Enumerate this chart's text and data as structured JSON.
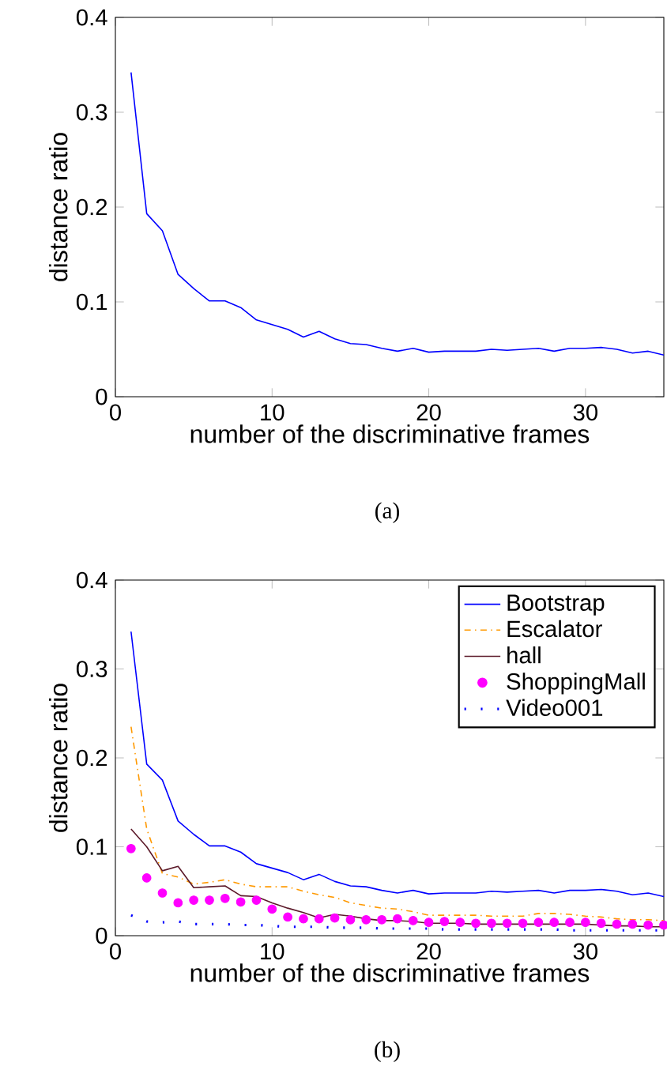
{
  "chart_data": [
    {
      "type": "line",
      "xlabel": "number of the discriminative frames",
      "ylabel": "distance ratio",
      "annotations": [
        "(a)"
      ],
      "x": [
        1,
        2,
        3,
        4,
        5,
        6,
        7,
        8,
        9,
        10,
        11,
        12,
        13,
        14,
        15,
        16,
        17,
        18,
        19,
        20,
        21,
        22,
        23,
        24,
        25,
        26,
        27,
        28,
        29,
        30,
        31,
        32,
        33,
        34,
        35
      ],
      "xlim": [
        0,
        35
      ],
      "ylim": [
        0,
        0.4
      ],
      "xticks": [
        0,
        10,
        20,
        30
      ],
      "yticks": [
        0,
        0.1,
        0.2,
        0.3,
        0.4
      ],
      "series": [
        {
          "color": "#0000ff",
          "line_style": "solid",
          "values": [
            0.342,
            0.193,
            0.175,
            0.129,
            0.114,
            0.101,
            0.101,
            0.094,
            0.081,
            0.076,
            0.071,
            0.063,
            0.069,
            0.061,
            0.056,
            0.055,
            0.051,
            0.048,
            0.051,
            0.047,
            0.048,
            0.048,
            0.048,
            0.05,
            0.049,
            0.05,
            0.051,
            0.048,
            0.051,
            0.051,
            0.052,
            0.05,
            0.046,
            0.048,
            0.044
          ]
        }
      ]
    },
    {
      "type": "line",
      "xlabel": "number of the discriminative frames",
      "ylabel": "distance ratio",
      "annotations": [
        "(b)"
      ],
      "legend": "top right",
      "x": [
        1,
        2,
        3,
        4,
        5,
        6,
        7,
        8,
        9,
        10,
        11,
        12,
        13,
        14,
        15,
        16,
        17,
        18,
        19,
        20,
        21,
        22,
        23,
        24,
        25,
        26,
        27,
        28,
        29,
        30,
        31,
        32,
        33,
        34,
        35
      ],
      "xlim": [
        0,
        35
      ],
      "ylim": [
        0,
        0.4
      ],
      "xticks": [
        0,
        10,
        20,
        30
      ],
      "yticks": [
        0,
        0.1,
        0.2,
        0.3,
        0.4
      ],
      "series": [
        {
          "name": "Bootstrap",
          "color": "#0000ff",
          "line_style": "solid",
          "values": [
            0.342,
            0.193,
            0.175,
            0.129,
            0.114,
            0.101,
            0.101,
            0.094,
            0.081,
            0.076,
            0.071,
            0.063,
            0.069,
            0.061,
            0.056,
            0.055,
            0.051,
            0.048,
            0.051,
            0.047,
            0.048,
            0.048,
            0.048,
            0.05,
            0.049,
            0.05,
            0.051,
            0.048,
            0.051,
            0.051,
            0.052,
            0.05,
            0.046,
            0.048,
            0.044
          ]
        },
        {
          "name": "Escalator",
          "color": "#ff9900",
          "line_style": "dashed",
          "values": [
            0.235,
            0.12,
            0.07,
            0.066,
            0.058,
            0.06,
            0.063,
            0.058,
            0.055,
            0.055,
            0.055,
            0.05,
            0.046,
            0.043,
            0.037,
            0.034,
            0.031,
            0.03,
            0.027,
            0.023,
            0.023,
            0.023,
            0.023,
            0.022,
            0.022,
            0.022,
            0.025,
            0.025,
            0.024,
            0.022,
            0.021,
            0.019,
            0.018,
            0.018,
            0.017
          ]
        },
        {
          "name": "hall",
          "color": "#5c1a2a",
          "line_style": "solid",
          "values": [
            0.12,
            0.1,
            0.073,
            0.078,
            0.054,
            0.055,
            0.056,
            0.045,
            0.044,
            0.037,
            0.031,
            0.026,
            0.02,
            0.024,
            0.022,
            0.019,
            0.017,
            0.017,
            0.016,
            0.014,
            0.014,
            0.014,
            0.013,
            0.013,
            0.013,
            0.013,
            0.013,
            0.013,
            0.013,
            0.013,
            0.012,
            0.011,
            0.011,
            0.01,
            0.01
          ]
        },
        {
          "name": "ShoppingMall",
          "type": "scatter",
          "marker": "circle",
          "color": "#ff00ff",
          "values": [
            0.098,
            0.065,
            0.048,
            0.037,
            0.04,
            0.04,
            0.042,
            0.038,
            0.04,
            0.03,
            0.021,
            0.019,
            0.019,
            0.02,
            0.018,
            0.018,
            0.018,
            0.019,
            0.017,
            0.015,
            0.016,
            0.015,
            0.014,
            0.014,
            0.014,
            0.014,
            0.015,
            0.015,
            0.015,
            0.015,
            0.014,
            0.013,
            0.013,
            0.012,
            0.012
          ]
        },
        {
          "name": "Video001",
          "color": "#0000ff",
          "line_style": "dotted",
          "values": [
            0.023,
            0.016,
            0.015,
            0.016,
            0.013,
            0.013,
            0.013,
            0.012,
            0.012,
            0.011,
            0.01,
            0.01,
            0.01,
            0.009,
            0.009,
            0.009,
            0.008,
            0.008,
            0.008,
            0.008,
            0.007,
            0.007,
            0.007,
            0.007,
            0.007,
            0.007,
            0.007,
            0.007,
            0.006,
            0.006,
            0.006,
            0.006,
            0.006,
            0.006,
            0.006
          ]
        }
      ]
    }
  ]
}
